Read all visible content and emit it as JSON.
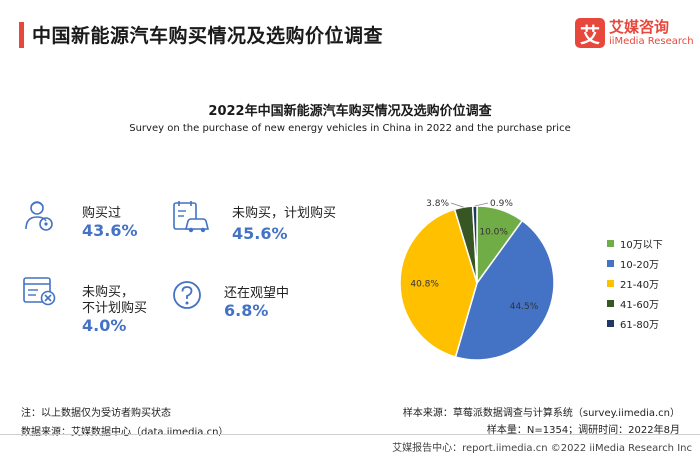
{
  "header": {
    "title": "中国新能源汽车购买情况及选购价位调查",
    "logo_cn": "艾媒咨询",
    "logo_en": "iiMedia Research",
    "logo_mark": "艾"
  },
  "stats": [
    {
      "label": "购买过",
      "value": "43.6%",
      "icon": "driver-icon"
    },
    {
      "label": "未购买，计划购买",
      "value": "45.6%",
      "icon": "car-plan-icon"
    },
    {
      "label_line1": "未购买，",
      "label_line2": "不计划购买",
      "value": "4.0%",
      "icon": "reject-list-icon"
    },
    {
      "label": "还在观望中",
      "value": "6.8%",
      "icon": "question-icon"
    }
  ],
  "chart_data": {
    "type": "pie",
    "title": "2022年中国新能源汽车购买情况及选购价位调查",
    "subtitle": "Survey on the purchase of new energy vehicles in China in 2022 and the purchase price",
    "slices": [
      {
        "label": "10万以下",
        "value": 10.0,
        "value_label": "10.0%",
        "color": "#70ad47"
      },
      {
        "label": "10-20万",
        "value": 44.5,
        "value_label": "44.5%",
        "color": "#4472c4"
      },
      {
        "label": "21-40万",
        "value": 40.8,
        "value_label": "40.8%",
        "color": "#ffc000"
      },
      {
        "label": "41-60万",
        "value": 3.8,
        "value_label": "3.8%",
        "color": "#375623"
      },
      {
        "label": "61-80万",
        "value": 0.9,
        "value_label": "0.9%",
        "color": "#1f3864"
      }
    ],
    "legend_position": "right"
  },
  "notes": {
    "note": "注：以上数据仅为受访者购买状态",
    "data_source": "数据来源：艾媒数据中心（data.iimedia.cn）",
    "sample_source": "样本来源：草莓派数据调查与计算系统（survey.iimedia.cn）",
    "sample_size": "样本量：N=1354；调研时间：2022年8月"
  },
  "footer": {
    "text": "艾媒报告中心：report.iimedia.cn  ©2022  iiMedia Research  Inc"
  }
}
